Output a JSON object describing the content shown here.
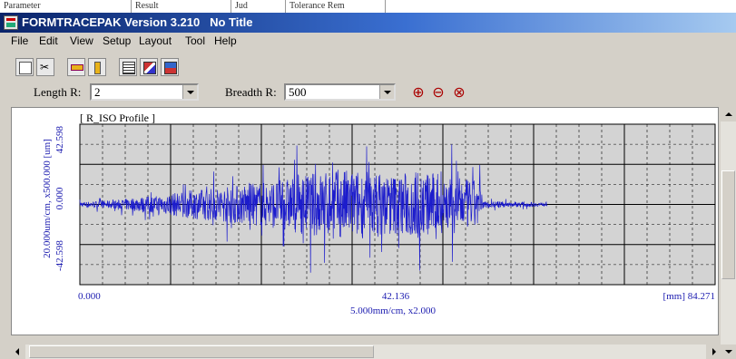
{
  "bg_header": {
    "col1": "Parameter",
    "col2": "Result",
    "col3": "Jud",
    "col4": "Tolerance Rem"
  },
  "window": {
    "title": "FORMTRACEPAK Version 3.210   No Title"
  },
  "menu": [
    "File",
    "Edit",
    "View",
    "Setup",
    "Layout",
    "Tool",
    "Help"
  ],
  "toolbar": {
    "icons": [
      "copy-icon",
      "cut-icon",
      "ruler-icon",
      "gauge-icon",
      "report-icon",
      "chart-icon",
      "data-icon"
    ]
  },
  "range": {
    "length_label": "Length R:",
    "length_value": "2",
    "breadth_label": "Breadth R:",
    "breadth_value": "500"
  },
  "zoom_icons": [
    "zoom-in-icon",
    "zoom-out-icon",
    "zoom-fit-icon"
  ],
  "colors": {
    "trace": "#1c1ccc",
    "grid": "#000000",
    "plot_bg": "#d3d3d3",
    "title_start": "#0a246a",
    "title_end": "#a6caf0"
  },
  "chart_data": {
    "type": "line",
    "title": "[ R_ISO Profile ]",
    "ylabel": "20.000um/cm, x500.000   [um]",
    "y_ticks": [
      "42.598",
      "0.000",
      "-42.598"
    ],
    "x_ticks": [
      "0.000",
      "42.136",
      "[mm] 84.271"
    ],
    "xlabel": "5.000mm/cm, x2.000",
    "xlim": [
      0,
      84.271
    ],
    "ylim": [
      -42.598,
      42.598
    ],
    "grid": true,
    "series": [
      {
        "envelope": [
          {
            "x": 0,
            "amp": 3
          },
          {
            "x": 5,
            "amp": 5
          },
          {
            "x": 7,
            "amp": 8
          },
          {
            "x": 10,
            "amp": 10
          },
          {
            "x": 14,
            "amp": 16
          },
          {
            "x": 18,
            "amp": 20
          },
          {
            "x": 22,
            "amp": 24
          },
          {
            "x": 26,
            "amp": 28
          },
          {
            "x": 30,
            "amp": 36
          },
          {
            "x": 34,
            "amp": 42
          },
          {
            "x": 38,
            "amp": 40
          },
          {
            "x": 42,
            "amp": 36
          },
          {
            "x": 45,
            "amp": 42
          },
          {
            "x": 48,
            "amp": 34
          },
          {
            "x": 51,
            "amp": 30
          },
          {
            "x": 53,
            "amp": 28
          },
          {
            "x": 53.5,
            "amp": 4
          },
          {
            "x": 58,
            "amp": 3
          },
          {
            "x": 62,
            "amp": 2
          }
        ]
      }
    ]
  }
}
